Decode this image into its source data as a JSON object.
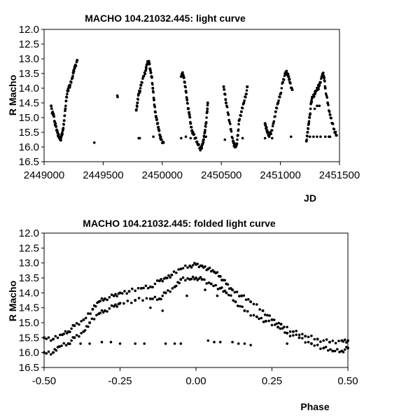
{
  "chart_data": [
    {
      "type": "scatter",
      "title": "MACHO 104.21032.445: light curve",
      "xlabel": "JD",
      "ylabel": "R Macho",
      "xlim": [
        2449000,
        2451500
      ],
      "ylim": [
        12.0,
        16.5
      ],
      "y_inverted": true,
      "xticks": [
        "2449000",
        "2449500",
        "2450000",
        "2450500",
        "2451000",
        "2451500"
      ],
      "xtick_values": [
        2449000,
        2449500,
        2450000,
        2450500,
        2451000,
        2451500
      ],
      "yticks": [
        "12.0",
        "12.5",
        "13.0",
        "13.5",
        "14.0",
        "14.5",
        "15.0",
        "15.5",
        "16.0",
        "16.5"
      ],
      "ytick_values": [
        12.0,
        12.5,
        13.0,
        13.5,
        14.0,
        14.5,
        15.0,
        15.5,
        16.0,
        16.5
      ],
      "grid": false,
      "marker_color": "#000000",
      "segments": [
        [
          [
            2449060,
            14.6
          ],
          [
            2449070,
            14.85
          ],
          [
            2449080,
            14.9
          ],
          [
            2449090,
            15.15
          ],
          [
            2449100,
            15.3
          ],
          [
            2449110,
            15.45
          ],
          [
            2449120,
            15.6
          ],
          [
            2449130,
            15.7
          ],
          [
            2449140,
            15.75
          ],
          [
            2449150,
            15.6
          ],
          [
            2449160,
            15.4
          ],
          [
            2449170,
            15.1
          ],
          [
            2449180,
            14.7
          ],
          [
            2449190,
            14.3
          ],
          [
            2449200,
            14.1
          ],
          [
            2449210,
            13.95
          ],
          [
            2449220,
            13.9
          ],
          [
            2449240,
            13.65
          ],
          [
            2449250,
            13.4
          ],
          [
            2449260,
            13.3
          ],
          [
            2449280,
            13.05
          ]
        ],
        [
          [
            2449780,
            14.75
          ],
          [
            2449790,
            14.5
          ],
          [
            2449800,
            14.2
          ],
          [
            2449810,
            14.1
          ],
          [
            2449820,
            13.9
          ],
          [
            2449840,
            13.6
          ],
          [
            2449860,
            13.4
          ],
          [
            2449870,
            13.2
          ],
          [
            2449880,
            13.1
          ],
          [
            2449890,
            13.15
          ],
          [
            2449900,
            13.4
          ],
          [
            2449910,
            13.6
          ],
          [
            2449920,
            14.0
          ],
          [
            2449930,
            14.4
          ],
          [
            2449940,
            14.8
          ],
          [
            2449950,
            15.0
          ],
          [
            2449960,
            15.2
          ],
          [
            2449970,
            15.4
          ],
          [
            2449980,
            15.6
          ],
          [
            2449990,
            15.75
          ],
          [
            2450010,
            15.85
          ]
        ],
        [
          [
            2450160,
            13.6
          ],
          [
            2450170,
            13.5
          ],
          [
            2450180,
            13.6
          ],
          [
            2450190,
            13.8
          ],
          [
            2450200,
            14.1
          ],
          [
            2450210,
            14.4
          ],
          [
            2450220,
            14.7
          ],
          [
            2450230,
            14.9
          ],
          [
            2450240,
            15.2
          ],
          [
            2450250,
            15.45
          ],
          [
            2450260,
            15.5
          ],
          [
            2450280,
            15.7
          ],
          [
            2450300,
            15.9
          ],
          [
            2450320,
            16.05
          ],
          [
            2450330,
            16.05
          ],
          [
            2450340,
            15.9
          ],
          [
            2450350,
            15.75
          ],
          [
            2450360,
            15.5
          ],
          [
            2450370,
            15.2
          ],
          [
            2450380,
            14.8
          ],
          [
            2450385,
            14.5
          ]
        ],
        [
          [
            2450520,
            13.95
          ],
          [
            2450530,
            14.2
          ],
          [
            2450540,
            14.5
          ],
          [
            2450560,
            14.9
          ],
          [
            2450580,
            15.4
          ],
          [
            2450600,
            15.8
          ],
          [
            2450610,
            15.95
          ],
          [
            2450620,
            16.0
          ],
          [
            2450630,
            15.9
          ],
          [
            2450640,
            15.6
          ],
          [
            2450650,
            15.1
          ],
          [
            2450670,
            14.8
          ],
          [
            2450690,
            14.5
          ],
          [
            2450710,
            14.2
          ],
          [
            2450720,
            13.95
          ]
        ],
        [
          [
            2450870,
            15.2
          ],
          [
            2450880,
            15.35
          ],
          [
            2450890,
            15.5
          ],
          [
            2450900,
            15.6
          ],
          [
            2450920,
            15.55
          ],
          [
            2450940,
            15.2
          ],
          [
            2450960,
            14.8
          ],
          [
            2450980,
            14.5
          ],
          [
            2451000,
            14.2
          ],
          [
            2451020,
            13.8
          ],
          [
            2451040,
            13.5
          ],
          [
            2451050,
            13.45
          ],
          [
            2451060,
            13.55
          ],
          [
            2451070,
            13.6
          ],
          [
            2451080,
            13.8
          ],
          [
            2451100,
            14.05
          ]
        ],
        [
          [
            2451220,
            15.8
          ],
          [
            2451230,
            15.5
          ],
          [
            2451240,
            15.2
          ],
          [
            2451250,
            14.9
          ],
          [
            2451260,
            14.5
          ],
          [
            2451270,
            14.3
          ],
          [
            2451290,
            14.2
          ],
          [
            2451300,
            14.1
          ],
          [
            2451320,
            14.0
          ],
          [
            2451330,
            13.9
          ],
          [
            2451350,
            13.6
          ],
          [
            2451360,
            13.5
          ],
          [
            2451370,
            13.65
          ],
          [
            2451380,
            14.0
          ],
          [
            2451400,
            14.5
          ],
          [
            2451420,
            14.9
          ],
          [
            2451440,
            15.2
          ],
          [
            2451460,
            15.5
          ],
          [
            2451475,
            15.6
          ]
        ]
      ],
      "isolated_points": [
        [
          2449425,
          15.85
        ],
        [
          2449620,
          14.25
        ],
        [
          2449622,
          14.3
        ],
        [
          2449800,
          15.7
        ],
        [
          2449810,
          15.7
        ],
        [
          2449925,
          15.65
        ],
        [
          2450160,
          15.7
        ],
        [
          2450200,
          15.65
        ],
        [
          2450240,
          15.7
        ],
        [
          2450370,
          15.65
        ],
        [
          2450530,
          15.75
        ],
        [
          2450680,
          15.7
        ],
        [
          2450870,
          15.7
        ],
        [
          2450930,
          15.7
        ],
        [
          2451090,
          15.65
        ],
        [
          2451250,
          15.65
        ],
        [
          2451280,
          15.65
        ],
        [
          2451310,
          15.65
        ],
        [
          2451340,
          15.65
        ],
        [
          2451380,
          15.65
        ],
        [
          2451410,
          15.65
        ],
        [
          2451420,
          15.65
        ],
        [
          2451290,
          14.7
        ],
        [
          2451310,
          14.6
        ],
        [
          2451330,
          14.6
        ],
        [
          2451320,
          13.9
        ]
      ]
    },
    {
      "type": "scatter",
      "title": "MACHO 104.21032.445: folded light curve",
      "xlabel": "Phase",
      "ylabel": "R Macho",
      "xlim": [
        -0.5,
        0.5
      ],
      "ylim": [
        12.0,
        16.5
      ],
      "y_inverted": true,
      "xticks": [
        "-0.50",
        "-0.25",
        "0.00",
        "0.25",
        "0.50"
      ],
      "xtick_values": [
        -0.5,
        -0.25,
        0.0,
        0.25,
        0.5
      ],
      "yticks": [
        "12.0",
        "12.5",
        "13.0",
        "13.5",
        "14.0",
        "14.5",
        "15.0",
        "15.5",
        "16.0",
        "16.5"
      ],
      "ytick_values": [
        12.0,
        12.5,
        13.0,
        13.5,
        14.0,
        14.5,
        15.0,
        15.5,
        16.0,
        16.5
      ],
      "grid": false,
      "marker_color": "#000000",
      "segments": [
        [
          [
            -0.5,
            15.5
          ],
          [
            -0.47,
            15.55
          ],
          [
            -0.44,
            15.4
          ],
          [
            -0.42,
            15.3
          ],
          [
            -0.4,
            15.1
          ],
          [
            -0.37,
            14.9
          ],
          [
            -0.34,
            14.55
          ],
          [
            -0.32,
            14.3
          ],
          [
            -0.3,
            14.2
          ],
          [
            -0.27,
            14.1
          ],
          [
            -0.25,
            14.0
          ],
          [
            -0.22,
            13.95
          ],
          [
            -0.18,
            13.85
          ],
          [
            -0.15,
            13.8
          ],
          [
            -0.12,
            13.6
          ],
          [
            -0.1,
            13.5
          ],
          [
            -0.08,
            13.4
          ],
          [
            -0.05,
            13.2
          ],
          [
            -0.02,
            13.1
          ],
          [
            0.0,
            13.05
          ],
          [
            0.02,
            13.1
          ],
          [
            0.04,
            13.2
          ],
          [
            0.06,
            13.3
          ],
          [
            0.08,
            13.45
          ],
          [
            0.1,
            13.7
          ],
          [
            0.12,
            13.9
          ],
          [
            0.15,
            14.1
          ],
          [
            0.18,
            14.3
          ],
          [
            0.22,
            14.6
          ],
          [
            0.25,
            14.9
          ],
          [
            0.28,
            15.05
          ],
          [
            0.32,
            15.3
          ],
          [
            0.36,
            15.45
          ],
          [
            0.4,
            15.55
          ],
          [
            0.44,
            15.65
          ],
          [
            0.48,
            15.6
          ],
          [
            0.5,
            15.6
          ]
        ],
        [
          [
            -0.5,
            16.0
          ],
          [
            -0.47,
            16.0
          ],
          [
            -0.45,
            15.8
          ],
          [
            -0.42,
            15.7
          ],
          [
            -0.4,
            15.5
          ],
          [
            -0.37,
            15.3
          ],
          [
            -0.35,
            15.0
          ],
          [
            -0.32,
            14.7
          ],
          [
            -0.3,
            14.6
          ],
          [
            -0.27,
            14.45
          ],
          [
            -0.25,
            14.35
          ],
          [
            -0.2,
            14.25
          ],
          [
            -0.15,
            14.2
          ],
          [
            -0.12,
            14.2
          ],
          [
            -0.1,
            14.0
          ],
          [
            -0.07,
            13.8
          ],
          [
            -0.05,
            13.55
          ],
          [
            -0.02,
            13.55
          ],
          [
            0.0,
            13.5
          ],
          [
            0.02,
            13.55
          ],
          [
            0.05,
            13.7
          ],
          [
            0.08,
            13.85
          ],
          [
            0.1,
            14.0
          ],
          [
            0.13,
            14.3
          ],
          [
            0.16,
            14.6
          ],
          [
            0.2,
            14.8
          ],
          [
            0.23,
            14.95
          ],
          [
            0.27,
            15.15
          ],
          [
            0.3,
            15.35
          ],
          [
            0.34,
            15.5
          ],
          [
            0.38,
            15.7
          ],
          [
            0.42,
            15.85
          ],
          [
            0.45,
            15.95
          ],
          [
            0.48,
            15.95
          ],
          [
            0.5,
            15.85
          ]
        ]
      ],
      "isolated_points": [
        [
          -0.38,
          15.7
        ],
        [
          -0.35,
          15.7
        ],
        [
          -0.31,
          15.65
        ],
        [
          -0.28,
          15.65
        ],
        [
          -0.25,
          15.7
        ],
        [
          -0.2,
          15.7
        ],
        [
          -0.17,
          15.7
        ],
        [
          -0.1,
          15.7
        ],
        [
          -0.07,
          15.7
        ],
        [
          -0.05,
          15.7
        ],
        [
          0.04,
          15.6
        ],
        [
          0.06,
          15.65
        ],
        [
          0.08,
          15.65
        ],
        [
          0.12,
          15.65
        ],
        [
          0.14,
          15.7
        ],
        [
          0.16,
          15.7
        ],
        [
          0.18,
          15.75
        ],
        [
          -0.15,
          14.5
        ],
        [
          -0.11,
          14.6
        ],
        [
          -0.03,
          14.1
        ],
        [
          0.03,
          13.9
        ],
        [
          0.07,
          14.1
        ],
        [
          0.3,
          15.7
        ]
      ]
    }
  ]
}
